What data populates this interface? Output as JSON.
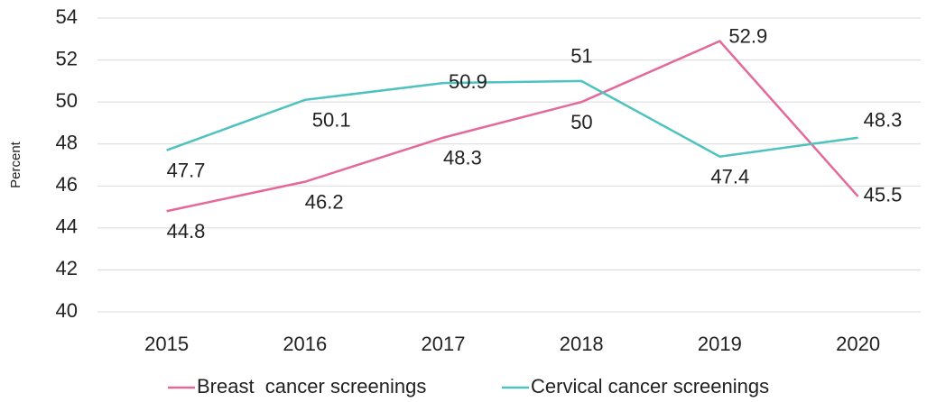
{
  "chart_data": {
    "type": "line",
    "y_label": "Percent",
    "categories": [
      "2015",
      "2016",
      "2017",
      "2018",
      "2019",
      "2020"
    ],
    "series": [
      {
        "name": "Breast  cancer screenings",
        "color": "#e4699a",
        "values": [
          44.8,
          46.2,
          48.3,
          50,
          52.9,
          45.5
        ]
      },
      {
        "name": "Cervical cancer screenings",
        "color": "#4dc2bf",
        "values": [
          47.7,
          50.1,
          50.9,
          51,
          47.4,
          48.3
        ]
      }
    ],
    "ylim": [
      40,
      54
    ],
    "yticks": [
      40,
      42,
      44,
      46,
      48,
      50,
      52,
      54
    ],
    "grid": true,
    "legend": "bottom"
  }
}
